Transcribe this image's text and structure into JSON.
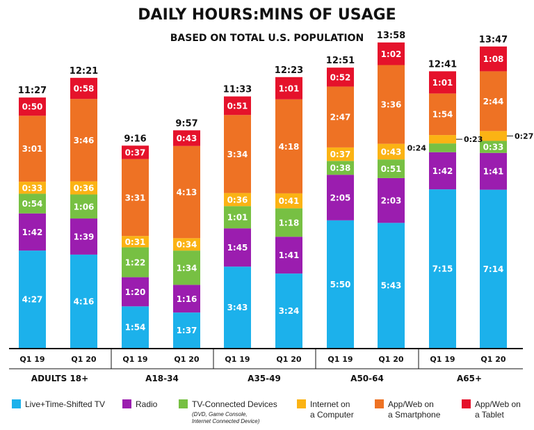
{
  "chart_data": {
    "type": "bar",
    "stacked": true,
    "title": "DAILY HOURS:MINS OF USAGE",
    "subtitle": "BASED ON TOTAL U.S. POPULATION",
    "units": "minutes",
    "ylim": [
      0,
      840
    ],
    "groups": [
      "ADULTS 18+",
      "A18-34",
      "A35-49",
      "A50-64",
      "A65+"
    ],
    "periods": [
      "Q1 19",
      "Q1 20"
    ],
    "series": [
      {
        "name": "Live+Time-Shifted TV",
        "color": "#1CB1EB"
      },
      {
        "name": "Radio",
        "color": "#9B1DAF"
      },
      {
        "name": "TV-Connected Devices",
        "note": "(DVD, Game Console, Internet Connected Device)",
        "color": "#77C043"
      },
      {
        "name": "Internet on a Computer",
        "color": "#FBB314"
      },
      {
        "name": "App/Web on a Smartphone",
        "color": "#EE7224"
      },
      {
        "name": "App/Web on a Tablet",
        "color": "#E5122B"
      }
    ],
    "bars": [
      {
        "group": "ADULTS 18+",
        "period": "Q1 19",
        "values": [
          267,
          102,
          54,
          33,
          181,
          50
        ],
        "labels": [
          "4:27",
          "1:42",
          "0:54",
          "0:33",
          "3:01",
          "0:50"
        ],
        "total": "11:27"
      },
      {
        "group": "ADULTS 18+",
        "period": "Q1 20",
        "values": [
          256,
          99,
          66,
          36,
          226,
          58
        ],
        "labels": [
          "4:16",
          "1:39",
          "1:06",
          "0:36",
          "3:46",
          "0:58"
        ],
        "total": "12:21"
      },
      {
        "group": "A18-34",
        "period": "Q1 19",
        "values": [
          114,
          80,
          82,
          31,
          211,
          37
        ],
        "labels": [
          "1:54",
          "1:20",
          "1:22",
          "0:31",
          "3:31",
          "0:37"
        ],
        "total": "9:16"
      },
      {
        "group": "A18-34",
        "period": "Q1 20",
        "values": [
          97,
          76,
          94,
          34,
          253,
          43
        ],
        "labels": [
          "1:37",
          "1:16",
          "1:34",
          "0:34",
          "4:13",
          "0:43"
        ],
        "total": "9:57"
      },
      {
        "group": "A35-49",
        "period": "Q1 19",
        "values": [
          223,
          105,
          61,
          36,
          214,
          51
        ],
        "labels": [
          "3:43",
          "1:45",
          "1:01",
          "0:36",
          "3:34",
          "0:51"
        ],
        "total": "11:33"
      },
      {
        "group": "A35-49",
        "period": "Q1 20",
        "values": [
          204,
          101,
          78,
          41,
          258,
          61
        ],
        "labels": [
          "3:24",
          "1:41",
          "1:18",
          "0:41",
          "4:18",
          "1:01"
        ],
        "total": "12:23"
      },
      {
        "group": "A50-64",
        "period": "Q1 19",
        "values": [
          350,
          125,
          38,
          37,
          167,
          52
        ],
        "labels": [
          "5:50",
          "2:05",
          "0:38",
          "0:37",
          "2:47",
          "0:52"
        ],
        "total": "12:51"
      },
      {
        "group": "A50-64",
        "period": "Q1 20",
        "values": [
          343,
          123,
          51,
          43,
          216,
          62
        ],
        "labels": [
          "5:43",
          "2:03",
          "0:51",
          "0:43",
          "3:36",
          "1:02"
        ],
        "total": "13:58"
      },
      {
        "group": "A65+",
        "period": "Q1 19",
        "values": [
          435,
          102,
          24,
          23,
          114,
          61
        ],
        "labels": [
          "7:15",
          "1:42",
          "0:24",
          "0:23",
          "1:54",
          "1:01"
        ],
        "total": "12:41"
      },
      {
        "group": "A65+",
        "period": "Q1 20",
        "values": [
          434,
          101,
          33,
          27,
          164,
          68
        ],
        "labels": [
          "7:14",
          "1:41",
          "0:33",
          "0:27",
          "2:44",
          "1:08"
        ],
        "total": "13:47"
      }
    ]
  }
}
